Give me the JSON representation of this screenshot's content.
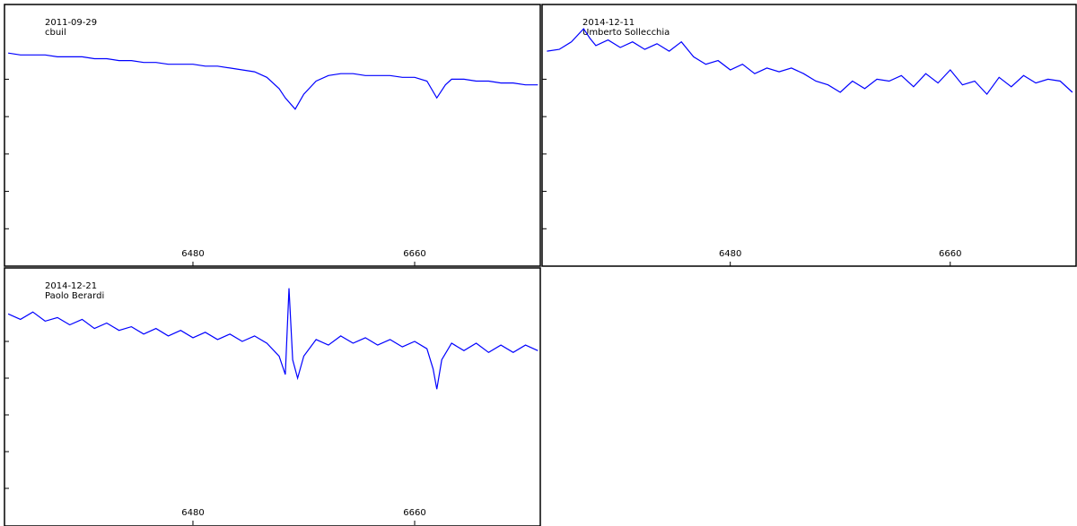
{
  "chart_data": [
    {
      "type": "line",
      "annotations": [
        "2011-09-29",
        "cbuil"
      ],
      "x": [
        6330,
        6340,
        6350,
        6360,
        6370,
        6380,
        6390,
        6400,
        6410,
        6420,
        6430,
        6440,
        6450,
        6460,
        6470,
        6480,
        6490,
        6500,
        6510,
        6520,
        6530,
        6540,
        6550,
        6555,
        6563,
        6570,
        6580,
        6590,
        6600,
        6610,
        6620,
        6630,
        6640,
        6650,
        6660,
        6670,
        6678,
        6685,
        6690,
        6700,
        6710,
        6720,
        6730,
        6740,
        6750,
        6760
      ],
      "series": [
        {
          "color": "#0000ff",
          "values": [
            1.14,
            1.13,
            1.13,
            1.13,
            1.12,
            1.12,
            1.12,
            1.11,
            1.11,
            1.1,
            1.1,
            1.09,
            1.09,
            1.08,
            1.08,
            1.08,
            1.07,
            1.07,
            1.06,
            1.05,
            1.04,
            1.01,
            0.95,
            0.9,
            0.84,
            0.92,
            0.99,
            1.02,
            1.03,
            1.03,
            1.02,
            1.02,
            1.02,
            1.01,
            1.01,
            0.99,
            0.9,
            0.97,
            1.0,
            1.0,
            0.99,
            0.99,
            0.98,
            0.98,
            0.97,
            0.97
          ]
        }
      ],
      "xlim": [
        6327,
        6762
      ],
      "xticks": [
        6480,
        6660
      ],
      "ylim": [
        0,
        1.4
      ],
      "yticks": [
        0.2,
        0.4,
        0.6,
        0.8,
        1.0
      ]
    },
    {
      "type": "line",
      "annotations": [
        "2014-12-11",
        "Umberto Sollecchia"
      ],
      "x": [
        6330,
        6340,
        6350,
        6360,
        6365,
        6370,
        6380,
        6390,
        6400,
        6410,
        6420,
        6430,
        6440,
        6450,
        6460,
        6470,
        6480,
        6490,
        6500,
        6510,
        6520,
        6530,
        6540,
        6550,
        6560,
        6570,
        6580,
        6590,
        6600,
        6610,
        6620,
        6630,
        6640,
        6650,
        6660,
        6670,
        6680,
        6690,
        6700,
        6710,
        6720,
        6730,
        6740,
        6750,
        6760
      ],
      "series": [
        {
          "color": "#0000ff",
          "values": [
            1.15,
            1.16,
            1.2,
            1.27,
            1.22,
            1.18,
            1.21,
            1.17,
            1.2,
            1.16,
            1.19,
            1.15,
            1.2,
            1.12,
            1.08,
            1.1,
            1.05,
            1.08,
            1.03,
            1.06,
            1.04,
            1.06,
            1.03,
            0.99,
            0.97,
            0.93,
            0.99,
            0.95,
            1.0,
            0.99,
            1.02,
            0.96,
            1.03,
            0.98,
            1.05,
            0.97,
            0.99,
            0.92,
            1.01,
            0.96,
            1.02,
            0.98,
            1.0,
            0.99,
            0.93
          ]
        }
      ],
      "xlim": [
        6326,
        6763
      ],
      "xticks": [
        6480,
        6660
      ],
      "ylim": [
        0,
        1.4
      ],
      "yticks": [
        0.2,
        0.4,
        0.6,
        0.8,
        1.0
      ]
    },
    {
      "type": "line",
      "annotations": [
        "2014-12-21",
        "Paolo Berardi"
      ],
      "x": [
        6330,
        6340,
        6350,
        6360,
        6370,
        6380,
        6390,
        6400,
        6410,
        6420,
        6430,
        6440,
        6450,
        6460,
        6470,
        6480,
        6490,
        6500,
        6510,
        6520,
        6530,
        6540,
        6550,
        6555,
        6558,
        6561,
        6565,
        6570,
        6580,
        6590,
        6600,
        6610,
        6620,
        6630,
        6640,
        6650,
        6660,
        6670,
        6675,
        6678,
        6682,
        6690,
        6700,
        6710,
        6720,
        6730,
        6740,
        6750,
        6760
      ],
      "series": [
        {
          "color": "#0000ff",
          "values": [
            1.15,
            1.12,
            1.16,
            1.11,
            1.13,
            1.09,
            1.12,
            1.07,
            1.1,
            1.06,
            1.08,
            1.04,
            1.07,
            1.03,
            1.06,
            1.02,
            1.05,
            1.01,
            1.04,
            1.0,
            1.03,
            0.99,
            0.92,
            0.82,
            1.29,
            0.9,
            0.8,
            0.92,
            1.01,
            0.98,
            1.03,
            0.99,
            1.02,
            0.98,
            1.01,
            0.97,
            1.0,
            0.96,
            0.85,
            0.74,
            0.9,
            0.99,
            0.95,
            0.99,
            0.94,
            0.98,
            0.94,
            0.98,
            0.95
          ]
        }
      ],
      "xlim": [
        6327,
        6762
      ],
      "xticks": [
        6480,
        6660
      ],
      "ylim": [
        0,
        1.4
      ],
      "yticks": [
        0.2,
        0.4,
        0.6,
        0.8,
        1.0
      ]
    }
  ]
}
